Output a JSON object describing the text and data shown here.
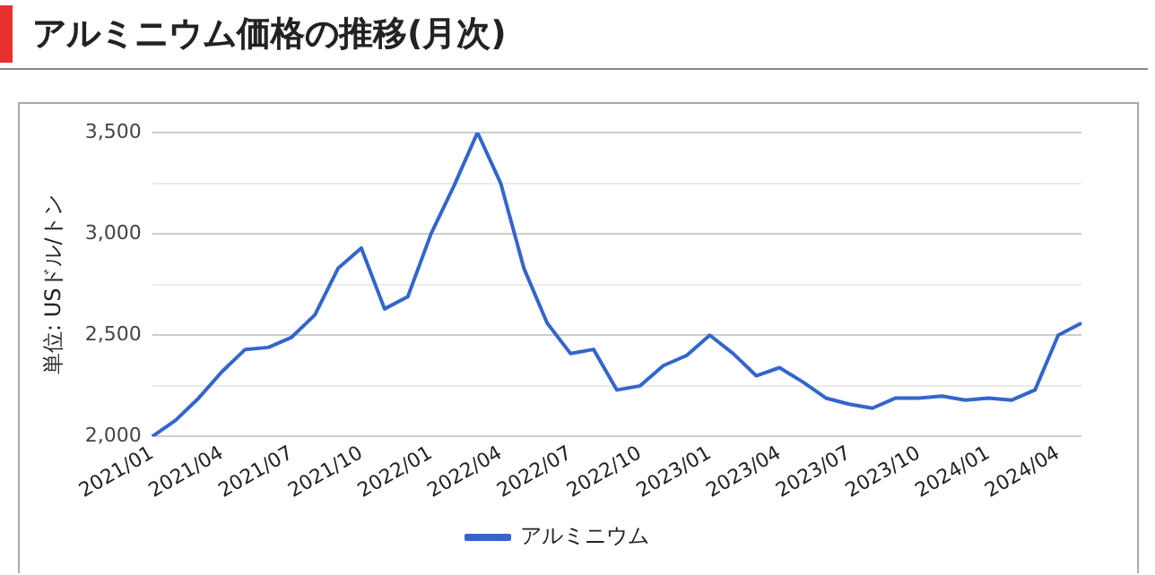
{
  "chart_data": {
    "type": "line",
    "title": "アルミニウム価格の推移(月次)",
    "ylabel": "単位: USドル/トン",
    "categories": [
      "2021/01",
      null,
      null,
      "2021/04",
      null,
      null,
      "2021/07",
      null,
      null,
      "2021/10",
      null,
      null,
      "2022/01",
      null,
      null,
      "2022/04",
      null,
      null,
      "2022/07",
      null,
      null,
      "2022/10",
      null,
      null,
      "2023/01",
      null,
      null,
      "2023/04",
      null,
      null,
      "2023/07",
      null,
      null,
      "2023/10",
      null,
      null,
      "2024/01",
      null,
      null,
      "2024/04",
      null
    ],
    "series": [
      {
        "name": "アルミニウム",
        "color": "#3366cc",
        "values": [
          2000,
          2080,
          2190,
          2320,
          2430,
          2440,
          2490,
          2600,
          2830,
          2930,
          2630,
          2690,
          3000,
          3240,
          3500,
          3250,
          2830,
          2560,
          2410,
          2430,
          2230,
          2250,
          2350,
          2400,
          2500,
          2410,
          2300,
          2340,
          2270,
          2190,
          2160,
          2140,
          2190,
          2190,
          2200,
          2180,
          2190,
          2180,
          2230,
          2500,
          2560
        ]
      }
    ],
    "ylim": [
      2000,
      3500
    ],
    "yticks": [
      {
        "value": 2000,
        "label": "2,000"
      },
      {
        "value": 2250,
        "label": null
      },
      {
        "value": 2500,
        "label": "2,500"
      },
      {
        "value": 2750,
        "label": null
      },
      {
        "value": 3000,
        "label": "3,000"
      },
      {
        "value": 3250,
        "label": null
      },
      {
        "value": 3500,
        "label": "3,500"
      }
    ],
    "grid": "y",
    "legend": "bottom",
    "marker": "none",
    "line_style": "solid"
  }
}
